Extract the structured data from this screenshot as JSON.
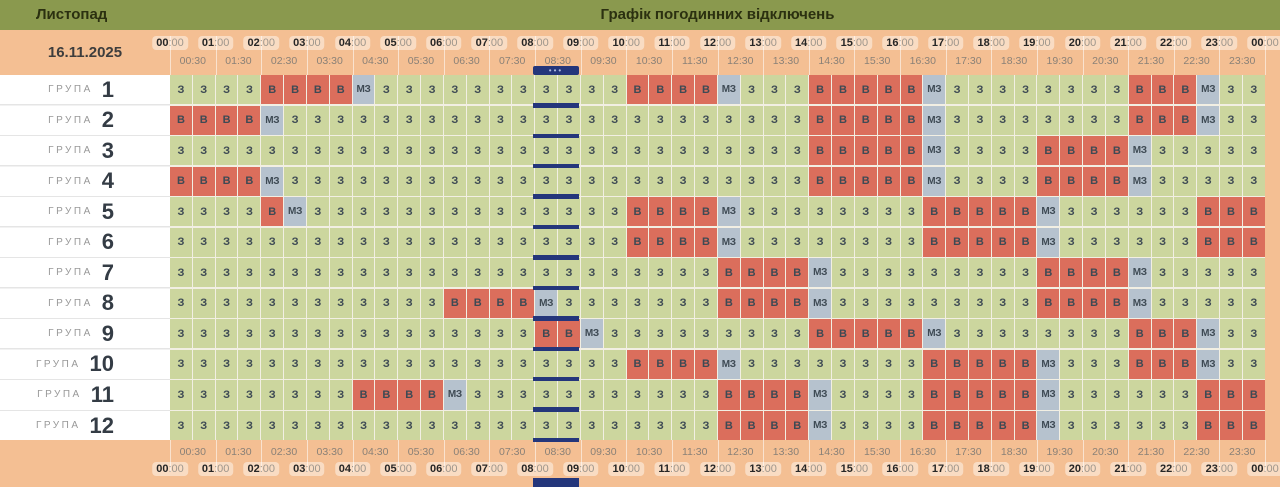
{
  "topbar": {
    "month": "Листопад",
    "title": "Графік погодинних відключень"
  },
  "timebar": {
    "date": "16.11.2025",
    "hours": [
      "00:00",
      "01:00",
      "02:00",
      "03:00",
      "04:00",
      "05:00",
      "06:00",
      "07:00",
      "08:00",
      "09:00",
      "10:00",
      "11:00",
      "12:00",
      "13:00",
      "14:00",
      "15:00",
      "16:00",
      "17:00",
      "18:00",
      "19:00",
      "20:00",
      "21:00",
      "22:00",
      "23:00",
      "00:00"
    ],
    "half_hours": [
      "00:30",
      "01:30",
      "02:30",
      "03:30",
      "04:30",
      "05:30",
      "06:30",
      "07:30",
      "08:30",
      "09:30",
      "10:30",
      "11:30",
      "12:30",
      "13:30",
      "14:30",
      "15:30",
      "16:30",
      "17:30",
      "18:30",
      "19:30",
      "20:30",
      "21:30",
      "22:30",
      "23:30"
    ]
  },
  "groups_panel": {
    "group_word": "ГРУПА"
  },
  "marker": {
    "dots": "•••",
    "covers": "08:00-09:00"
  },
  "cell_codes": {
    "on": "З",
    "off": "В",
    "maybe": "МЗ"
  },
  "colors": {
    "topbar": "#8a994e",
    "timebar": "#f4bf93",
    "cell_on": "#ccd69e",
    "cell_off": "#db6e5c",
    "cell_maybe": "#b6c2ce",
    "marker": "#24367b"
  },
  "chart_data": {
    "type": "heatmap",
    "title": "Графік погодинних відключень",
    "date": "16.11.2025",
    "slot_minutes": 30,
    "x_start": "00:00",
    "x_end": "00:00",
    "rows": [
      {
        "group": "1",
        "slots": [
          "З",
          "З",
          "З",
          "З",
          "В",
          "В",
          "В",
          "В",
          "МЗ",
          "З",
          "З",
          "З",
          "З",
          "З",
          "З",
          "З",
          "З",
          "З",
          "З",
          "З",
          "В",
          "В",
          "В",
          "В",
          "МЗ",
          "З",
          "З",
          "З",
          "В",
          "В",
          "В",
          "В",
          "В",
          "МЗ",
          "З",
          "З",
          "З",
          "З",
          "З",
          "З",
          "З",
          "З",
          "В",
          "В",
          "В",
          "МЗ",
          "З",
          "З"
        ]
      },
      {
        "group": "2",
        "slots": [
          "В",
          "В",
          "В",
          "В",
          "МЗ",
          "З",
          "З",
          "З",
          "З",
          "З",
          "З",
          "З",
          "З",
          "З",
          "З",
          "З",
          "З",
          "З",
          "З",
          "З",
          "З",
          "З",
          "З",
          "З",
          "З",
          "З",
          "З",
          "З",
          "В",
          "В",
          "В",
          "В",
          "В",
          "МЗ",
          "З",
          "З",
          "З",
          "З",
          "З",
          "З",
          "З",
          "З",
          "В",
          "В",
          "В",
          "МЗ",
          "З",
          "З"
        ]
      },
      {
        "group": "3",
        "slots": [
          "З",
          "З",
          "З",
          "З",
          "З",
          "З",
          "З",
          "З",
          "З",
          "З",
          "З",
          "З",
          "З",
          "З",
          "З",
          "З",
          "З",
          "З",
          "З",
          "З",
          "З",
          "З",
          "З",
          "З",
          "З",
          "З",
          "З",
          "З",
          "В",
          "В",
          "В",
          "В",
          "В",
          "МЗ",
          "З",
          "З",
          "З",
          "З",
          "В",
          "В",
          "В",
          "В",
          "МЗ",
          "З",
          "З",
          "З",
          "З",
          "З"
        ]
      },
      {
        "group": "4",
        "slots": [
          "В",
          "В",
          "В",
          "В",
          "МЗ",
          "З",
          "З",
          "З",
          "З",
          "З",
          "З",
          "З",
          "З",
          "З",
          "З",
          "З",
          "З",
          "З",
          "З",
          "З",
          "З",
          "З",
          "З",
          "З",
          "З",
          "З",
          "З",
          "З",
          "В",
          "В",
          "В",
          "В",
          "В",
          "МЗ",
          "З",
          "З",
          "З",
          "З",
          "В",
          "В",
          "В",
          "В",
          "МЗ",
          "З",
          "З",
          "З",
          "З",
          "З"
        ]
      },
      {
        "group": "5",
        "slots": [
          "З",
          "З",
          "З",
          "З",
          "В",
          "МЗ",
          "З",
          "З",
          "З",
          "З",
          "З",
          "З",
          "З",
          "З",
          "З",
          "З",
          "З",
          "З",
          "З",
          "З",
          "В",
          "В",
          "В",
          "В",
          "МЗ",
          "З",
          "З",
          "З",
          "З",
          "З",
          "З",
          "З",
          "З",
          "В",
          "В",
          "В",
          "В",
          "В",
          "МЗ",
          "З",
          "З",
          "З",
          "З",
          "З",
          "З",
          "В",
          "В",
          "В"
        ]
      },
      {
        "group": "6",
        "slots": [
          "З",
          "З",
          "З",
          "З",
          "З",
          "З",
          "З",
          "З",
          "З",
          "З",
          "З",
          "З",
          "З",
          "З",
          "З",
          "З",
          "З",
          "З",
          "З",
          "З",
          "В",
          "В",
          "В",
          "В",
          "МЗ",
          "З",
          "З",
          "З",
          "З",
          "З",
          "З",
          "З",
          "З",
          "В",
          "В",
          "В",
          "В",
          "В",
          "МЗ",
          "З",
          "З",
          "З",
          "З",
          "З",
          "З",
          "В",
          "В",
          "В"
        ]
      },
      {
        "group": "7",
        "slots": [
          "З",
          "З",
          "З",
          "З",
          "З",
          "З",
          "З",
          "З",
          "З",
          "З",
          "З",
          "З",
          "З",
          "З",
          "З",
          "З",
          "З",
          "З",
          "З",
          "З",
          "З",
          "З",
          "З",
          "З",
          "В",
          "В",
          "В",
          "В",
          "МЗ",
          "З",
          "З",
          "З",
          "З",
          "З",
          "З",
          "З",
          "З",
          "З",
          "В",
          "В",
          "В",
          "В",
          "МЗ",
          "З",
          "З",
          "З",
          "З",
          "З"
        ]
      },
      {
        "group": "8",
        "slots": [
          "З",
          "З",
          "З",
          "З",
          "З",
          "З",
          "З",
          "З",
          "З",
          "З",
          "З",
          "З",
          "В",
          "В",
          "В",
          "В",
          "МЗ",
          "З",
          "З",
          "З",
          "З",
          "З",
          "З",
          "З",
          "В",
          "В",
          "В",
          "В",
          "МЗ",
          "З",
          "З",
          "З",
          "З",
          "З",
          "З",
          "З",
          "З",
          "З",
          "В",
          "В",
          "В",
          "В",
          "МЗ",
          "З",
          "З",
          "З",
          "З",
          "З"
        ]
      },
      {
        "group": "9",
        "slots": [
          "З",
          "З",
          "З",
          "З",
          "З",
          "З",
          "З",
          "З",
          "З",
          "З",
          "З",
          "З",
          "З",
          "З",
          "З",
          "З",
          "В",
          "В",
          "МЗ",
          "З",
          "З",
          "З",
          "З",
          "З",
          "З",
          "З",
          "З",
          "З",
          "В",
          "В",
          "В",
          "В",
          "В",
          "МЗ",
          "З",
          "З",
          "З",
          "З",
          "З",
          "З",
          "З",
          "З",
          "В",
          "В",
          "В",
          "МЗ",
          "З",
          "З"
        ]
      },
      {
        "group": "10",
        "slots": [
          "З",
          "З",
          "З",
          "З",
          "З",
          "З",
          "З",
          "З",
          "З",
          "З",
          "З",
          "З",
          "З",
          "З",
          "З",
          "З",
          "З",
          "З",
          "З",
          "З",
          "В",
          "В",
          "В",
          "В",
          "МЗ",
          "З",
          "З",
          "З",
          "З",
          "З",
          "З",
          "З",
          "З",
          "В",
          "В",
          "В",
          "В",
          "В",
          "МЗ",
          "З",
          "З",
          "З",
          "В",
          "В",
          "В",
          "МЗ",
          "З",
          "З"
        ]
      },
      {
        "group": "11",
        "slots": [
          "З",
          "З",
          "З",
          "З",
          "З",
          "З",
          "З",
          "З",
          "В",
          "В",
          "В",
          "В",
          "МЗ",
          "З",
          "З",
          "З",
          "З",
          "З",
          "З",
          "З",
          "З",
          "З",
          "З",
          "З",
          "В",
          "В",
          "В",
          "В",
          "МЗ",
          "З",
          "З",
          "З",
          "З",
          "В",
          "В",
          "В",
          "В",
          "В",
          "МЗ",
          "З",
          "З",
          "З",
          "З",
          "З",
          "З",
          "В",
          "В",
          "В"
        ]
      },
      {
        "group": "12",
        "slots": [
          "З",
          "З",
          "З",
          "З",
          "З",
          "З",
          "З",
          "З",
          "З",
          "З",
          "З",
          "З",
          "З",
          "З",
          "З",
          "З",
          "З",
          "З",
          "З",
          "З",
          "З",
          "З",
          "З",
          "З",
          "В",
          "В",
          "В",
          "В",
          "МЗ",
          "З",
          "З",
          "З",
          "З",
          "В",
          "В",
          "В",
          "В",
          "В",
          "МЗ",
          "З",
          "З",
          "З",
          "З",
          "З",
          "З",
          "В",
          "В",
          "В"
        ]
      }
    ]
  }
}
